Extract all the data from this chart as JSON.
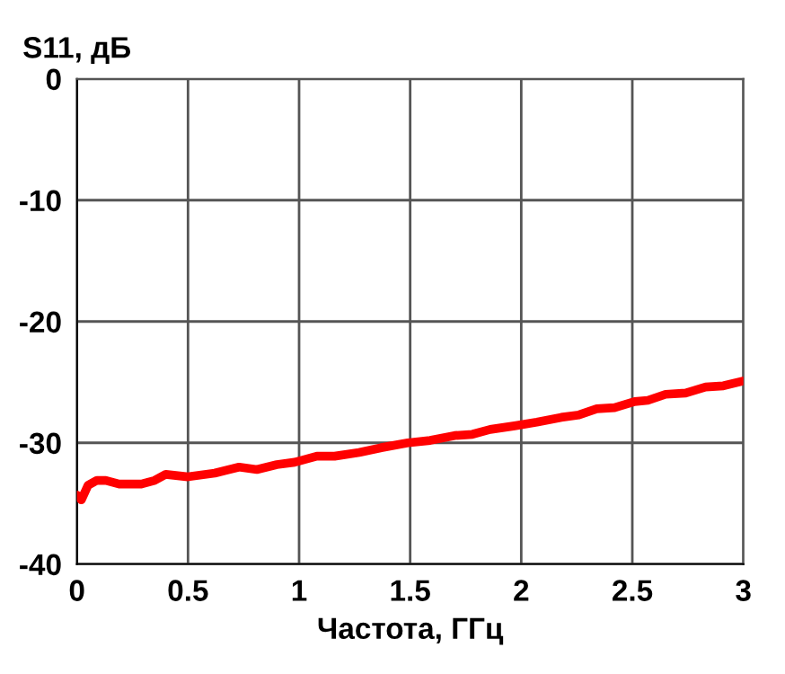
{
  "chart_data": {
    "type": "line",
    "ylabel": "S11, дБ",
    "xlabel": "Частота, ГГц",
    "xlim": [
      0,
      3
    ],
    "xticks": [
      0,
      0.5,
      1,
      1.5,
      2,
      2.5,
      3
    ],
    "ylim": [
      -40,
      0
    ],
    "yticks": [
      -40,
      -30,
      -20,
      -10,
      0
    ],
    "grid": true,
    "marker": "none",
    "line_style": "solid",
    "series": [
      {
        "color": "#ff0000",
        "x": [
          0,
          0.02,
          0.05,
          0.09,
          0.13,
          0.19,
          0.29,
          0.35,
          0.4,
          0.5,
          0.62,
          0.73,
          0.81,
          0.9,
          0.98,
          1.08,
          1.16,
          1.27,
          1.37,
          1.49,
          1.59,
          1.7,
          1.78,
          1.86,
          1.97,
          2.07,
          2.18,
          2.26,
          2.34,
          2.42,
          2.51,
          2.57,
          2.65,
          2.74,
          2.83,
          2.91,
          3.0
        ],
        "values": [
          -34.3,
          -34.7,
          -33.5,
          -33.1,
          -33.1,
          -33.4,
          -33.4,
          -33.1,
          -32.6,
          -32.8,
          -32.5,
          -32.0,
          -32.2,
          -31.8,
          -31.6,
          -31.1,
          -31.1,
          -30.8,
          -30.4,
          -30.0,
          -29.8,
          -29.4,
          -29.3,
          -28.9,
          -28.6,
          -28.3,
          -27.9,
          -27.7,
          -27.2,
          -27.1,
          -26.6,
          -26.5,
          -26.0,
          -25.9,
          -25.4,
          -25.3,
          -24.9
        ]
      }
    ]
  }
}
